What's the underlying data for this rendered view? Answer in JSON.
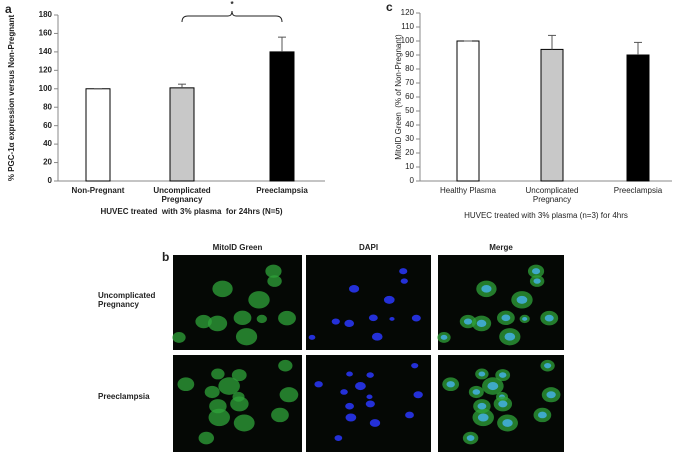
{
  "chart_data": [
    {
      "type": "bar",
      "panel_label": "a",
      "y_label": "% PGC-1α expression versus Non-Pregnant",
      "x_label": "HUVEC treated  with 3% plasma  for 24hrs (N=5)",
      "annotation": "*",
      "categories": [
        "Non-Pregnant",
        "Uncomplicated Pregnancy",
        "Preeclampsia"
      ],
      "values": [
        100,
        101,
        140
      ],
      "errors": [
        0,
        4,
        16
      ],
      "colors": [
        "#ffffff",
        "#c8c8c8",
        "#000000"
      ],
      "ylim": [
        0,
        180
      ],
      "yticks": [
        0,
        20,
        40,
        60,
        80,
        100,
        120,
        140,
        160,
        180
      ]
    },
    {
      "type": "bar",
      "panel_label": "c",
      "y_label": "MitoID Green  (% of Non-Pregnant)",
      "x_label": "HUVEC treated with 3% plasma (n=3) for 4hrs",
      "categories": [
        "Healthy Plasma",
        "Uncomplicated Pregnancy",
        "Preeclampsia"
      ],
      "values": [
        100,
        94,
        90
      ],
      "errors": [
        0,
        10,
        9
      ],
      "colors": [
        "#ffffff",
        "#c8c8c8",
        "#000000"
      ],
      "ylim": [
        0,
        120
      ],
      "yticks": [
        0,
        10,
        20,
        30,
        40,
        50,
        60,
        70,
        80,
        90,
        100,
        110,
        120
      ]
    }
  ],
  "panel_b": {
    "label": "b",
    "columns": [
      "MitoID Green",
      "DAPI",
      "Merge"
    ],
    "rows": [
      "Uncomplicated Pregnancy",
      "Preeclampsia"
    ]
  }
}
